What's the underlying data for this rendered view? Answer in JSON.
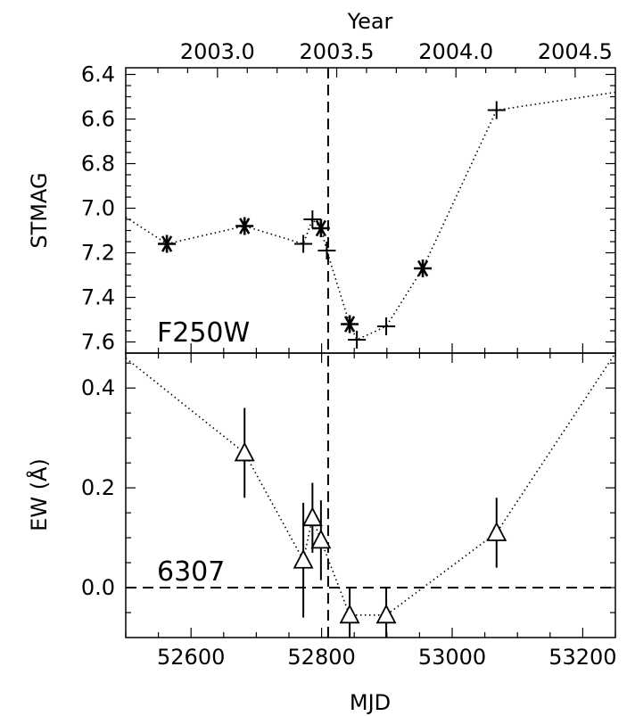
{
  "chart_data": [
    {
      "type": "scatter",
      "panel": "top",
      "title": "",
      "panel_label": "F250W",
      "xlabel": "MJD",
      "ylabel": "STMAG",
      "top_axis_label": "Year",
      "xlim": [
        52500,
        53250
      ],
      "ylim": [
        7.65,
        6.37
      ],
      "y_inverted": true,
      "x_ticks": [
        52600,
        52800,
        53000,
        53200
      ],
      "x_tick_labels": [
        "52600",
        "52800",
        "53000",
        "53200"
      ],
      "top_ticks": [
        2003.0,
        2003.5,
        2004.0,
        2004.5
      ],
      "top_tick_labels": [
        "2003.0",
        "2003.5",
        "2004.0",
        "2004.5"
      ],
      "y_ticks": [
        6.4,
        6.6,
        6.8,
        7.0,
        7.2,
        7.4,
        7.6
      ],
      "y_tick_labels": [
        "6.4",
        "6.6",
        "6.8",
        "7.0",
        "7.2",
        "7.4",
        "7.6"
      ],
      "vline_x": 52810,
      "series": [
        {
          "marker": "asterisk",
          "points": [
            {
              "x": 52563,
              "y": 7.16
            },
            {
              "x": 52682,
              "y": 7.08
            },
            {
              "x": 52799,
              "y": 7.09
            },
            {
              "x": 52843,
              "y": 7.52
            },
            {
              "x": 52955,
              "y": 7.27
            }
          ]
        },
        {
          "marker": "plus",
          "points": [
            {
              "x": 52772,
              "y": 7.16
            },
            {
              "x": 52786,
              "y": 7.05
            },
            {
              "x": 52808,
              "y": 7.19
            },
            {
              "x": 52854,
              "y": 7.59
            },
            {
              "x": 52899,
              "y": 7.53
            },
            {
              "x": 53068,
              "y": 6.56
            }
          ]
        }
      ],
      "connector": [
        {
          "x": 52500,
          "y": 7.04
        },
        {
          "x": 52563,
          "y": 7.16
        },
        {
          "x": 52682,
          "y": 7.08
        },
        {
          "x": 52772,
          "y": 7.16
        },
        {
          "x": 52786,
          "y": 7.05
        },
        {
          "x": 52799,
          "y": 7.09
        },
        {
          "x": 52808,
          "y": 7.19
        },
        {
          "x": 52843,
          "y": 7.52
        },
        {
          "x": 52854,
          "y": 7.59
        },
        {
          "x": 52899,
          "y": 7.53
        },
        {
          "x": 52955,
          "y": 7.27
        },
        {
          "x": 53068,
          "y": 6.56
        },
        {
          "x": 53250,
          "y": 6.48
        }
      ]
    },
    {
      "type": "scatter",
      "panel": "bottom",
      "title": "",
      "panel_label": "6307",
      "xlabel": "MJD",
      "ylabel": "EW (Å)",
      "xlim": [
        52500,
        53250
      ],
      "ylim": [
        -0.1,
        0.47
      ],
      "y_ticks": [
        0.0,
        0.2,
        0.4
      ],
      "y_tick_labels": [
        "0.0",
        "0.2",
        "0.4"
      ],
      "hline_y": 0.0,
      "vline_x": 52810,
      "series": [
        {
          "marker": "triangle",
          "points": [
            {
              "x": 52682,
              "y": 0.27,
              "err": 0.09
            },
            {
              "x": 52772,
              "y": 0.055,
              "err": 0.115
            },
            {
              "x": 52786,
              "y": 0.14,
              "err": 0.07
            },
            {
              "x": 52799,
              "y": 0.095,
              "err": 0.08
            },
            {
              "x": 52843,
              "y": -0.055,
              "err": 0.055
            },
            {
              "x": 52899,
              "y": -0.055,
              "err": 0.055
            },
            {
              "x": 53068,
              "y": 0.11,
              "err": 0.07
            }
          ]
        }
      ],
      "connector": [
        {
          "x": 52500,
          "y": 0.46
        },
        {
          "x": 52682,
          "y": 0.27
        },
        {
          "x": 52772,
          "y": 0.055
        },
        {
          "x": 52786,
          "y": 0.14
        },
        {
          "x": 52799,
          "y": 0.095
        },
        {
          "x": 52843,
          "y": -0.055
        },
        {
          "x": 52899,
          "y": -0.055
        },
        {
          "x": 53068,
          "y": 0.11
        },
        {
          "x": 53250,
          "y": 0.47
        }
      ]
    }
  ]
}
